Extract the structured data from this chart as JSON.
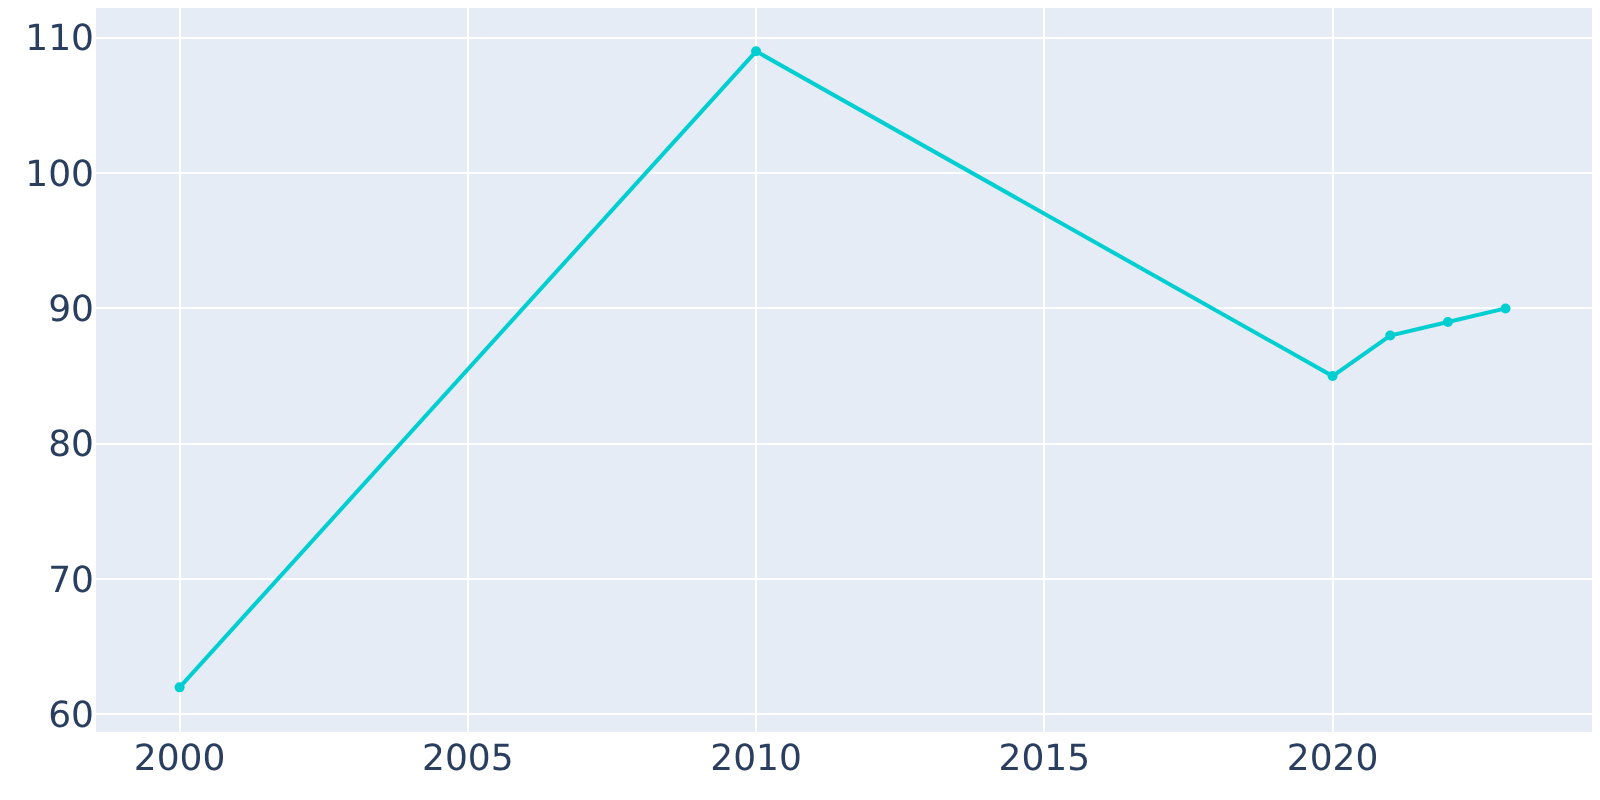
{
  "chart_data": {
    "type": "line",
    "x": [
      2000,
      2010,
      2020,
      2021,
      2022,
      2023
    ],
    "series": [
      {
        "color": "#00ced1",
        "values": [
          62,
          109,
          85,
          88,
          89,
          90
        ]
      }
    ],
    "xlim": [
      1998.55,
      2024.5
    ],
    "xticks": [
      2000,
      2005,
      2010,
      2015,
      2020
    ],
    "ylim": [
      58.7,
      112.2
    ],
    "yticks": [
      60,
      70,
      80,
      90,
      100,
      110
    ],
    "grid": true,
    "legend": false,
    "marker": "circle",
    "line_style": "solid"
  }
}
